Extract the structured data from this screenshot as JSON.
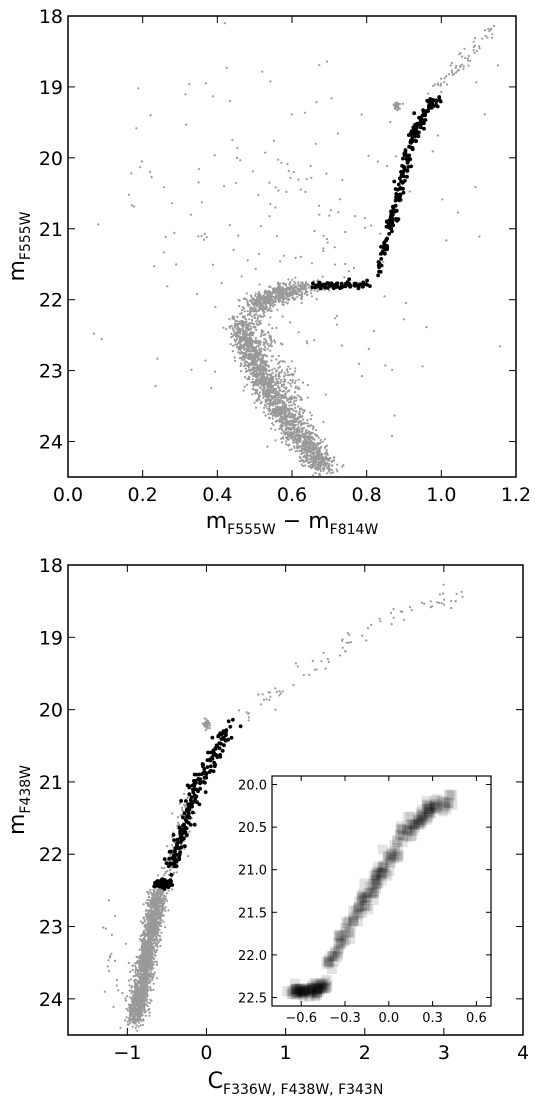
{
  "chart_data": [
    {
      "type": "scatter",
      "title": "",
      "xlabel": "m_F555W − m_F814W",
      "xlabel_parts": {
        "main_a": "m",
        "sub_a": "F555W",
        "op": " − ",
        "main_b": "m",
        "sub_b": "F814W"
      },
      "ylabel": "m_F555W",
      "ylabel_parts": {
        "main": "m",
        "sub": "F555W"
      },
      "xlim": [
        0.0,
        1.2
      ],
      "ylim": [
        24.5,
        18.0
      ],
      "y_inverted": true,
      "x_ticks": [
        0.0,
        0.2,
        0.4,
        0.6,
        0.8,
        1.0,
        1.2
      ],
      "x_tick_labels": [
        "0.0",
        "0.2",
        "0.4",
        "0.6",
        "0.8",
        "1.0",
        "1.2"
      ],
      "y_ticks": [
        18,
        19,
        20,
        21,
        22,
        23,
        24
      ],
      "y_tick_labels": [
        "18",
        "19",
        "20",
        "21",
        "22",
        "23",
        "24"
      ],
      "grid": false,
      "series": [
        {
          "color": "#999999",
          "marker": "dot",
          "components": [
            {
              "kind": "main_sequence_and_turnoff",
              "points": [
                [
                  0.46,
                  22.3
                ],
                [
                  0.48,
                  22.6
                ],
                [
                  0.5,
                  22.9
                ],
                [
                  0.53,
                  23.2
                ],
                [
                  0.56,
                  23.5
                ],
                [
                  0.6,
                  23.8
                ],
                [
                  0.64,
                  24.1
                ],
                [
                  0.69,
                  24.4
                ],
                [
                  0.5,
                  22.1
                ],
                [
                  0.55,
                  21.95
                ],
                [
                  0.62,
                  21.85
                ]
              ],
              "spread": [
                0.035,
                0.12
              ],
              "count": 2600
            },
            {
              "kind": "subgiant_gray_overlap",
              "points": [
                [
                  0.62,
                  21.82
                ],
                [
                  0.66,
                  21.8
                ],
                [
                  0.7,
                  21.82
                ]
              ],
              "spread": [
                0.02,
                0.06
              ],
              "count": 60
            },
            {
              "kind": "red_clump",
              "points": [
                [
                  0.88,
                  19.25
                ]
              ],
              "spread": [
                0.008,
                0.06
              ],
              "count": 40
            },
            {
              "kind": "upper_giant_branch",
              "points": [
                [
                  0.98,
                  19.1
                ],
                [
                  1.03,
                  18.8
                ],
                [
                  1.08,
                  18.5
                ],
                [
                  1.13,
                  18.2
                ]
              ],
              "spread": [
                0.02,
                0.1
              ],
              "count": 60
            },
            {
              "kind": "field_stars",
              "points": [
                [
                  0.6,
                  21.0
                ]
              ],
              "spread": [
                0.45,
                2.5
              ],
              "count": 200
            }
          ]
        },
        {
          "color": "#000000",
          "marker": "dot",
          "components": [
            {
              "kind": "subgiant_branch",
              "points": [
                [
                  0.65,
                  21.8
                ],
                [
                  0.7,
                  21.8
                ],
                [
                  0.75,
                  21.8
                ],
                [
                  0.8,
                  21.8
                ]
              ],
              "spread": [
                0.015,
                0.05
              ],
              "count": 70
            },
            {
              "kind": "red_giant_branch",
              "points": [
                [
                  0.83,
                  21.6
                ],
                [
                  0.85,
                  21.2
                ],
                [
                  0.87,
                  20.8
                ],
                [
                  0.89,
                  20.4
                ],
                [
                  0.91,
                  20.0
                ],
                [
                  0.93,
                  19.6
                ],
                [
                  0.96,
                  19.3
                ],
                [
                  0.99,
                  19.2
                ]
              ],
              "spread": [
                0.012,
                0.1
              ],
              "count": 200
            }
          ]
        }
      ]
    },
    {
      "type": "scatter",
      "title": "",
      "xlabel": "C_F336W,F438W,F343N",
      "xlabel_parts": {
        "main": "C",
        "sub": "F336W, F438W, F343N"
      },
      "ylabel": "m_F438W",
      "ylabel_parts": {
        "main": "m",
        "sub": "F438W"
      },
      "xlim": [
        -1.75,
        4.0
      ],
      "ylim": [
        24.5,
        18.0
      ],
      "y_inverted": true,
      "x_ticks": [
        -1,
        0,
        1,
        2,
        3,
        4
      ],
      "x_tick_labels": [
        "−1",
        "0",
        "1",
        "2",
        "3",
        "4"
      ],
      "y_ticks": [
        18,
        19,
        20,
        21,
        22,
        23,
        24
      ],
      "y_tick_labels": [
        "18",
        "19",
        "20",
        "21",
        "22",
        "23",
        "24"
      ],
      "grid": false,
      "series": [
        {
          "color": "#999999",
          "marker": "dot",
          "components": [
            {
              "kind": "main_sequence",
              "points": [
                [
                  -0.6,
                  22.5
                ],
                [
                  -0.65,
                  22.8
                ],
                [
                  -0.7,
                  23.1
                ],
                [
                  -0.75,
                  23.4
                ],
                [
                  -0.8,
                  23.7
                ],
                [
                  -0.85,
                  24.0
                ],
                [
                  -0.9,
                  24.3
                ]
              ],
              "spread": [
                0.1,
                0.12
              ],
              "count": 1800
            },
            {
              "kind": "subgiant_gray_overlap",
              "points": [
                [
                  -0.5,
                  22.4
                ],
                [
                  -0.4,
                  22.0
                ],
                [
                  -0.3,
                  21.6
                ],
                [
                  -0.2,
                  21.2
                ]
              ],
              "spread": [
                0.1,
                0.12
              ],
              "count": 150
            },
            {
              "kind": "red_clump",
              "points": [
                [
                  0.0,
                  20.2
                ]
              ],
              "spread": [
                0.04,
                0.07
              ],
              "count": 40
            },
            {
              "kind": "upper_giant_branch",
              "points": [
                [
                  0.4,
                  20.1
                ],
                [
                  0.8,
                  19.8
                ],
                [
                  1.4,
                  19.4
                ],
                [
                  2.0,
                  18.9
                ],
                [
                  2.6,
                  18.6
                ],
                [
                  3.3,
                  18.4
                ]
              ],
              "spread": [
                0.12,
                0.12
              ],
              "count": 80
            },
            {
              "kind": "field_stars",
              "points": [
                [
                  -1.2,
                  23.5
                ]
              ],
              "spread": [
                0.2,
                0.8
              ],
              "count": 20
            }
          ]
        },
        {
          "color": "#000000",
          "marker": "dot",
          "components": [
            {
              "kind": "subgiant_clump",
              "points": [
                [
                  -0.55,
                  22.4
                ]
              ],
              "spread": [
                0.1,
                0.05
              ],
              "count": 90
            },
            {
              "kind": "red_giant_branch",
              "points": [
                [
                  -0.45,
                  22.2
                ],
                [
                  -0.35,
                  21.9
                ],
                [
                  -0.25,
                  21.5
                ],
                [
                  -0.15,
                  21.1
                ],
                [
                  0.0,
                  20.8
                ],
                [
                  0.15,
                  20.5
                ],
                [
                  0.3,
                  20.2
                ]
              ],
              "spread": [
                0.08,
                0.1
              ],
              "count": 200
            }
          ]
        }
      ],
      "inset": {
        "type": "scatter",
        "marker": "square",
        "color": "#000000",
        "xlim": [
          -0.8,
          0.7
        ],
        "ylim": [
          22.6,
          19.9
        ],
        "y_inverted": true,
        "x_ticks": [
          -0.6,
          -0.3,
          0.0,
          0.3,
          0.6
        ],
        "x_tick_labels": [
          "−0.6",
          "−0.3",
          "0.0",
          "0.3",
          "0.6"
        ],
        "y_ticks": [
          20.0,
          20.5,
          21.0,
          21.5,
          22.0,
          22.5
        ],
        "y_tick_labels": [
          "20.0",
          "20.5",
          "21.0",
          "21.5",
          "22.0",
          "22.5"
        ],
        "components": [
          {
            "kind": "subgiant_clump",
            "points": [
              [
                -0.65,
                22.4
              ],
              [
                -0.55,
                22.45
              ],
              [
                -0.45,
                22.35
              ]
            ],
            "spread": [
              0.05,
              0.05
            ],
            "count": 90
          },
          {
            "kind": "red_giant_branch",
            "points": [
              [
                -0.4,
                22.1
              ],
              [
                -0.3,
                21.75
              ],
              [
                -0.2,
                21.45
              ],
              [
                -0.1,
                21.15
              ],
              [
                0.0,
                20.85
              ],
              [
                0.1,
                20.6
              ],
              [
                0.2,
                20.4
              ],
              [
                0.3,
                20.25
              ],
              [
                0.45,
                20.2
              ]
            ],
            "spread": [
              0.05,
              0.08
            ],
            "count": 200
          }
        ]
      }
    }
  ]
}
